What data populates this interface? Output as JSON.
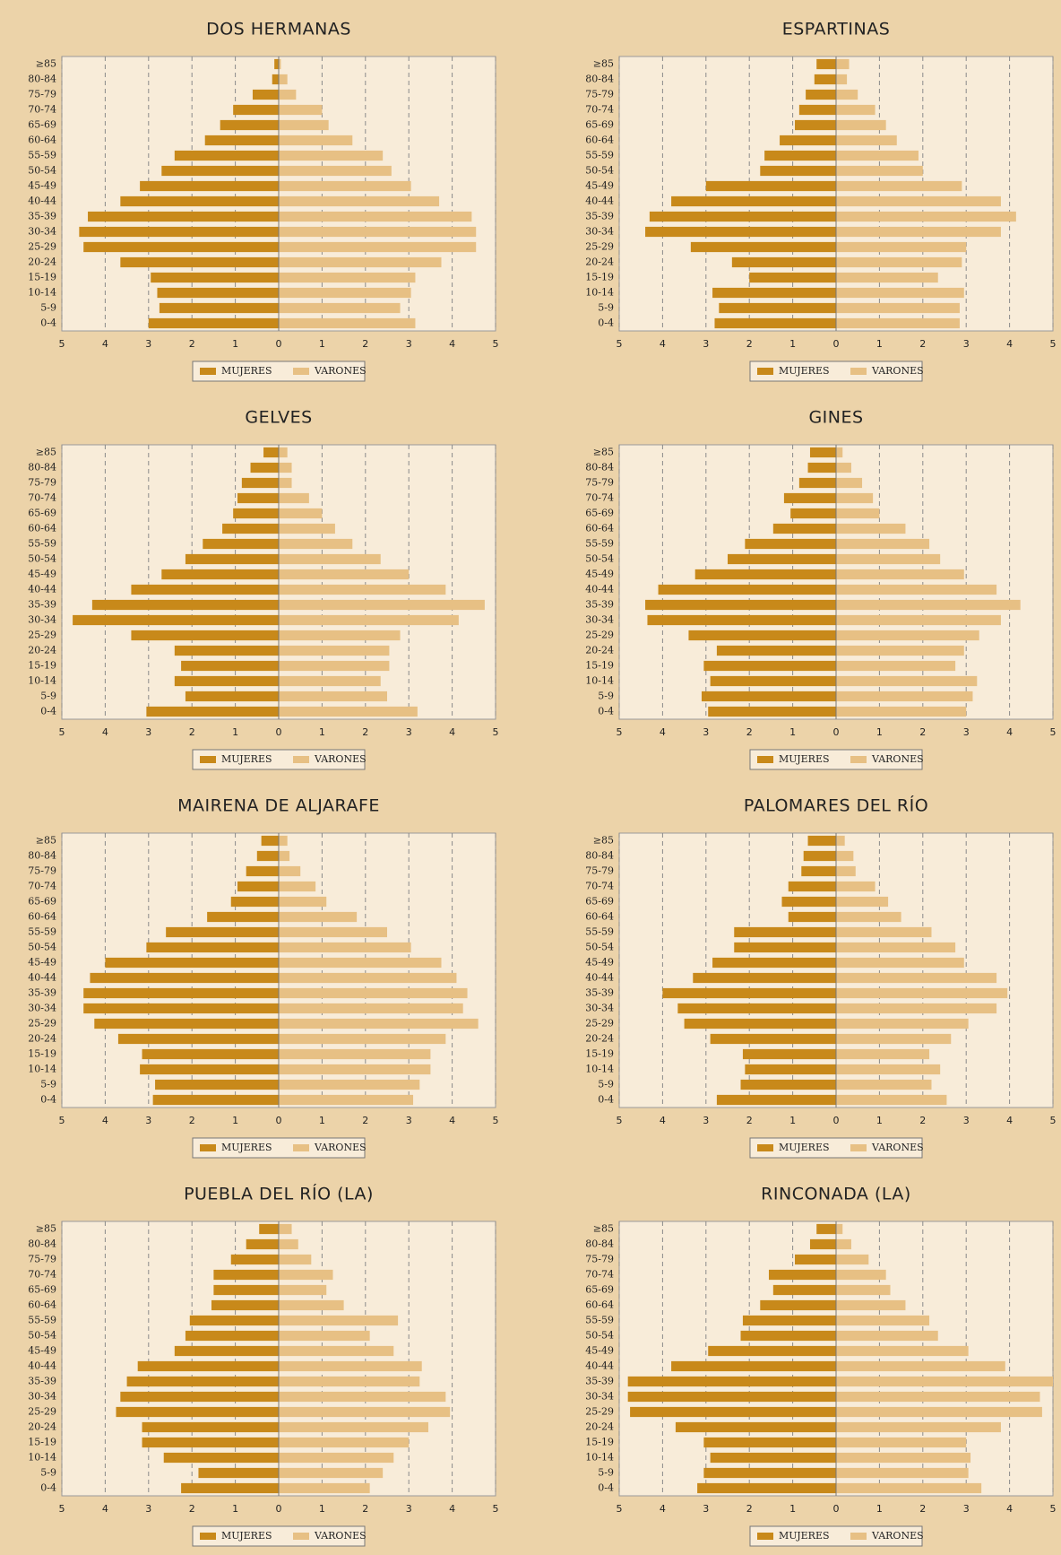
{
  "chart_data": [
    {
      "type": "pyramid",
      "title": "DOS HERMANAS",
      "categories": [
        "0-4",
        "5-9",
        "10-14",
        "15-19",
        "20-24",
        "25-29",
        "30-34",
        "35-39",
        "40-44",
        "45-49",
        "50-54",
        "55-59",
        "60-64",
        "65-69",
        "70-74",
        "75-79",
        "80-84",
        "≥85"
      ],
      "series": [
        {
          "name": "MUJERES",
          "color": "#c8891a",
          "values": [
            3.0,
            2.75,
            2.8,
            2.95,
            3.65,
            4.5,
            4.6,
            4.4,
            3.65,
            3.2,
            2.7,
            2.4,
            1.7,
            1.35,
            1.05,
            0.6,
            0.15,
            0.1
          ]
        },
        {
          "name": "VARONES",
          "color": "#e7c084",
          "values": [
            3.15,
            2.8,
            3.05,
            3.15,
            3.75,
            4.55,
            4.55,
            4.45,
            3.7,
            3.05,
            2.6,
            2.4,
            1.7,
            1.15,
            1.0,
            0.4,
            0.2,
            0.05
          ]
        }
      ],
      "xlim": [
        -5,
        5
      ],
      "xticks": [
        {
          "value": -5,
          "label": "5"
        },
        {
          "value": -4,
          "label": "4"
        },
        {
          "value": -3,
          "label": "3"
        },
        {
          "value": -2,
          "label": "2"
        },
        {
          "value": -1,
          "label": "1"
        },
        0,
        1,
        2,
        3,
        4,
        5
      ],
      "grid": true
    },
    {
      "type": "pyramid",
      "title": "ESPARTINAS",
      "categories": [
        "0-4",
        "5-9",
        "10-14",
        "15-19",
        "20-24",
        "25-29",
        "30-34",
        "35-39",
        "40-44",
        "45-49",
        "50-54",
        "55-59",
        "60-64",
        "65-69",
        "70-74",
        "75-79",
        "80-84",
        "≥85"
      ],
      "series": [
        {
          "name": "MUJERES",
          "color": "#c8891a",
          "values": [
            2.8,
            2.7,
            2.85,
            2.0,
            2.4,
            3.35,
            4.4,
            4.3,
            3.8,
            3.0,
            1.75,
            1.65,
            1.3,
            0.95,
            0.85,
            0.7,
            0.5,
            0.45
          ]
        },
        {
          "name": "VARONES",
          "color": "#e7c084",
          "values": [
            2.85,
            2.85,
            2.95,
            2.35,
            2.9,
            3.0,
            3.8,
            4.15,
            3.8,
            2.9,
            2.0,
            1.9,
            1.4,
            1.15,
            0.9,
            0.5,
            0.25,
            0.3
          ]
        }
      ],
      "xlim": [
        -5,
        5
      ],
      "xticks": [
        {
          "value": -5,
          "label": "5"
        },
        {
          "value": -4,
          "label": "4"
        },
        {
          "value": -3,
          "label": "3"
        },
        {
          "value": -2,
          "label": "2"
        },
        {
          "value": -1,
          "label": "1"
        },
        0,
        1,
        2,
        3,
        4,
        5
      ],
      "grid": true
    },
    {
      "type": "pyramid",
      "title": "GELVES",
      "categories": [
        "0-4",
        "5-9",
        "10-14",
        "15-19",
        "20-24",
        "25-29",
        "30-34",
        "35-39",
        "40-44",
        "45-49",
        "50-54",
        "55-59",
        "60-64",
        "65-69",
        "70-74",
        "75-79",
        "80-84",
        "≥85"
      ],
      "series": [
        {
          "name": "MUJERES",
          "color": "#c8891a",
          "values": [
            3.05,
            2.15,
            2.4,
            2.25,
            2.4,
            3.4,
            4.75,
            4.3,
            3.4,
            2.7,
            2.15,
            1.75,
            1.3,
            1.05,
            0.95,
            0.85,
            0.65,
            0.35
          ]
        },
        {
          "name": "VARONES",
          "color": "#e7c084",
          "values": [
            3.2,
            2.5,
            2.35,
            2.55,
            2.55,
            2.8,
            4.15,
            4.75,
            3.85,
            3.0,
            2.35,
            1.7,
            1.3,
            1.0,
            0.7,
            0.3,
            0.3,
            0.2
          ]
        }
      ],
      "xlim": [
        -5,
        5
      ],
      "xticks": [
        {
          "value": -5,
          "label": "5"
        },
        {
          "value": -4,
          "label": "4"
        },
        {
          "value": -3,
          "label": "3"
        },
        {
          "value": -2,
          "label": "2"
        },
        {
          "value": -1,
          "label": "1"
        },
        0,
        1,
        2,
        3,
        4,
        5
      ],
      "grid": true
    },
    {
      "type": "pyramid",
      "title": "GINES",
      "categories": [
        "0-4",
        "5-9",
        "10-14",
        "15-19",
        "20-24",
        "25-29",
        "30-34",
        "35-39",
        "40-44",
        "45-49",
        "50-54",
        "55-59",
        "60-64",
        "65-69",
        "70-74",
        "75-79",
        "80-84",
        "≥85"
      ],
      "series": [
        {
          "name": "MUJERES",
          "color": "#c8891a",
          "values": [
            2.95,
            3.1,
            2.9,
            3.05,
            2.75,
            3.4,
            4.35,
            4.4,
            4.1,
            3.25,
            2.5,
            2.1,
            1.45,
            1.05,
            1.2,
            0.85,
            0.65,
            0.6
          ]
        },
        {
          "name": "VARONES",
          "color": "#e7c084",
          "values": [
            3.0,
            3.15,
            3.25,
            2.75,
            2.95,
            3.3,
            3.8,
            4.25,
            3.7,
            2.95,
            2.4,
            2.15,
            1.6,
            1.0,
            0.85,
            0.6,
            0.35,
            0.15
          ]
        }
      ],
      "xlim": [
        -5,
        5
      ],
      "xticks": [
        {
          "value": -5,
          "label": "5"
        },
        {
          "value": -4,
          "label": "4"
        },
        {
          "value": -3,
          "label": "3"
        },
        {
          "value": -2,
          "label": "2"
        },
        {
          "value": -1,
          "label": "1"
        },
        0,
        1,
        2,
        3,
        4,
        5
      ],
      "grid": true
    },
    {
      "type": "pyramid",
      "title": "MAIRENA DE ALJARAFE",
      "categories": [
        "0-4",
        "5-9",
        "10-14",
        "15-19",
        "20-24",
        "25-29",
        "30-34",
        "35-39",
        "40-44",
        "45-49",
        "50-54",
        "55-59",
        "60-64",
        "65-69",
        "70-74",
        "75-79",
        "80-84",
        "≥85"
      ],
      "series": [
        {
          "name": "MUJERES",
          "color": "#c8891a",
          "values": [
            2.9,
            2.85,
            3.2,
            3.15,
            3.7,
            4.25,
            4.5,
            4.5,
            4.35,
            4.0,
            3.05,
            2.6,
            1.65,
            1.1,
            0.95,
            0.75,
            0.5,
            0.4
          ]
        },
        {
          "name": "VARONES",
          "color": "#e7c084",
          "values": [
            3.1,
            3.25,
            3.5,
            3.5,
            3.85,
            4.6,
            4.25,
            4.35,
            4.1,
            3.75,
            3.05,
            2.5,
            1.8,
            1.1,
            0.85,
            0.5,
            0.25,
            0.2
          ]
        }
      ],
      "xlim": [
        -5,
        5
      ],
      "xticks": [
        {
          "value": -5,
          "label": "5"
        },
        {
          "value": -4,
          "label": "4"
        },
        {
          "value": -3,
          "label": "3"
        },
        {
          "value": -2,
          "label": "2"
        },
        {
          "value": -1,
          "label": "1"
        },
        0,
        1,
        2,
        3,
        4,
        5
      ],
      "grid": true
    },
    {
      "type": "pyramid",
      "title": "PALOMARES DEL RÍO",
      "categories": [
        "0-4",
        "5-9",
        "10-14",
        "15-19",
        "20-24",
        "25-29",
        "30-34",
        "35-39",
        "40-44",
        "45-49",
        "50-54",
        "55-59",
        "60-64",
        "65-69",
        "70-74",
        "75-79",
        "80-84",
        "≥85"
      ],
      "series": [
        {
          "name": "MUJERES",
          "color": "#c8891a",
          "values": [
            2.75,
            2.2,
            2.1,
            2.15,
            2.9,
            3.5,
            3.65,
            4.0,
            3.3,
            2.85,
            2.35,
            2.35,
            1.1,
            1.25,
            1.1,
            0.8,
            0.75,
            0.65
          ]
        },
        {
          "name": "VARONES",
          "color": "#e7c084",
          "values": [
            2.55,
            2.2,
            2.4,
            2.15,
            2.65,
            3.05,
            3.7,
            3.95,
            3.7,
            2.95,
            2.75,
            2.2,
            1.5,
            1.2,
            0.9,
            0.45,
            0.4,
            0.2
          ]
        }
      ],
      "xlim": [
        -5,
        5
      ],
      "xticks": [
        {
          "value": -5,
          "label": "5"
        },
        {
          "value": -4,
          "label": "4"
        },
        {
          "value": -3,
          "label": "3"
        },
        {
          "value": -2,
          "label": "2"
        },
        {
          "value": -1,
          "label": "1"
        },
        0,
        1,
        2,
        3,
        4,
        5
      ],
      "grid": true
    },
    {
      "type": "pyramid",
      "title": "PUEBLA DEL RÍO (LA)",
      "categories": [
        "0-4",
        "5-9",
        "10-14",
        "15-19",
        "20-24",
        "25-29",
        "30-34",
        "35-39",
        "40-44",
        "45-49",
        "50-54",
        "55-59",
        "60-64",
        "65-69",
        "70-74",
        "75-79",
        "80-84",
        "≥85"
      ],
      "series": [
        {
          "name": "MUJERES",
          "color": "#c8891a",
          "values": [
            2.25,
            1.85,
            2.65,
            3.15,
            3.15,
            3.75,
            3.65,
            3.5,
            3.25,
            2.4,
            2.15,
            2.05,
            1.55,
            1.5,
            1.5,
            1.1,
            0.75,
            0.45
          ]
        },
        {
          "name": "VARONES",
          "color": "#e7c084",
          "values": [
            2.1,
            2.4,
            2.65,
            3.0,
            3.45,
            3.95,
            3.85,
            3.25,
            3.3,
            2.65,
            2.1,
            2.75,
            1.5,
            1.1,
            1.25,
            0.75,
            0.45,
            0.3
          ]
        }
      ],
      "xlim": [
        -5,
        5
      ],
      "xticks": [
        {
          "value": -5,
          "label": "5"
        },
        {
          "value": -4,
          "label": "4"
        },
        {
          "value": -3,
          "label": "3"
        },
        {
          "value": -2,
          "label": "2"
        },
        {
          "value": -1,
          "label": "1"
        },
        0,
        1,
        2,
        3,
        4,
        5
      ],
      "grid": true
    },
    {
      "type": "pyramid",
      "title": "RINCONADA (LA)",
      "categories": [
        "0-4",
        "5-9",
        "10-14",
        "15-19",
        "20-24",
        "25-29",
        "30-34",
        "35-39",
        "40-44",
        "45-49",
        "50-54",
        "55-59",
        "60-64",
        "65-69",
        "70-74",
        "75-79",
        "80-84",
        "≥85"
      ],
      "series": [
        {
          "name": "MUJERES",
          "color": "#c8891a",
          "values": [
            3.2,
            3.05,
            2.9,
            3.05,
            3.7,
            4.75,
            4.8,
            4.8,
            3.8,
            2.95,
            2.2,
            2.15,
            1.75,
            1.45,
            1.55,
            0.95,
            0.6,
            0.45
          ]
        },
        {
          "name": "VARONES",
          "color": "#e7c084",
          "values": [
            3.35,
            3.05,
            3.1,
            3.0,
            3.8,
            4.75,
            4.7,
            5.0,
            3.9,
            3.05,
            2.35,
            2.15,
            1.6,
            1.25,
            1.15,
            0.75,
            0.35,
            0.15
          ]
        }
      ],
      "xlim": [
        -5,
        5
      ],
      "xticks": [
        {
          "value": -5,
          "label": "5"
        },
        {
          "value": -4,
          "label": "4"
        },
        {
          "value": -3,
          "label": "3"
        },
        {
          "value": -2,
          "label": "2"
        },
        {
          "value": -1,
          "label": "1"
        },
        0,
        1,
        2,
        3,
        4,
        5
      ],
      "grid": true
    }
  ]
}
